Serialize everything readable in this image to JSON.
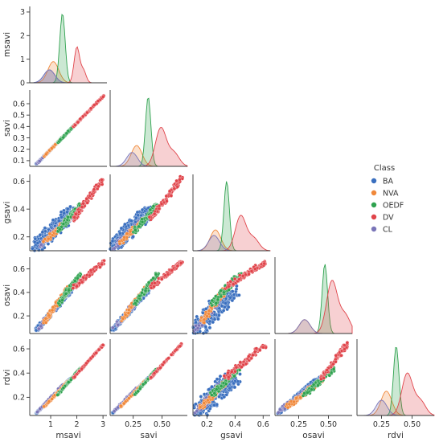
{
  "chart_data": {
    "type": "scatter",
    "subtype": "pairplot",
    "variables": [
      "msavi",
      "savi",
      "gsavi",
      "osavi",
      "rdvi"
    ],
    "diagonal": "kde",
    "legend": {
      "title": "Class",
      "placement": "right",
      "entries": [
        {
          "name": "BA",
          "color": "#3a6fbf"
        },
        {
          "name": "NVA",
          "color": "#f0883a"
        },
        {
          "name": "OEDF",
          "color": "#2fa24f"
        },
        {
          "name": "DV",
          "color": "#e0444a"
        },
        {
          "name": "CL",
          "color": "#7a75b8"
        }
      ]
    },
    "axes": {
      "msavi": {
        "range": [
          0.2,
          3.15
        ],
        "ticks": [
          1,
          2,
          3
        ],
        "tick_labels": [
          "1",
          "2",
          "3"
        ]
      },
      "savi": {
        "range": [
          0.05,
          0.72
        ],
        "ticks": [
          0.25,
          0.5
        ],
        "tick_labels": [
          "0.25",
          "0.50"
        ],
        "y_ticks": [
          0.1,
          0.2,
          0.3,
          0.4,
          0.5,
          0.6
        ],
        "y_tick_labels": [
          "0.1",
          "0.2",
          "0.3",
          "0.4",
          "0.5",
          "0.6"
        ]
      },
      "gsavi": {
        "range": [
          0.1,
          0.65
        ],
        "ticks": [
          0.2,
          0.4,
          0.6
        ],
        "tick_labels": [
          "0.2",
          "0.4",
          "0.6"
        ]
      },
      "osavi": {
        "range": [
          0.05,
          0.7
        ],
        "ticks": [
          0.25,
          0.5
        ],
        "tick_labels": [
          "0.25",
          "0.50"
        ],
        "y_ticks": [
          0.2,
          0.4,
          0.6
        ],
        "y_tick_labels": [
          "0.2",
          "0.4",
          "0.6"
        ]
      },
      "rdvi": {
        "range": [
          0.05,
          0.68
        ],
        "ticks": [
          0.25,
          0.5
        ],
        "tick_labels": [
          "0.25",
          "0.50"
        ],
        "y_ticks": [
          0.2,
          0.4,
          0.6
        ],
        "y_tick_labels": [
          "0.2",
          "0.4",
          "0.6"
        ]
      }
    },
    "diag_top_yaxis": {
      "ticks": [
        0,
        1,
        2,
        3
      ],
      "tick_labels": [
        "0",
        "1",
        "2",
        "3"
      ],
      "range": [
        0,
        3.1
      ]
    },
    "class_ranges": {
      "BA": {
        "savi": [
          0.07,
          0.38
        ],
        "gsavi": [
          0.13,
          0.38
        ],
        "osavi": [
          0.08,
          0.42
        ],
        "rdvi": [
          0.07,
          0.36
        ]
      },
      "NVA": {
        "savi": [
          0.14,
          0.36
        ],
        "gsavi": [
          0.16,
          0.34
        ],
        "osavi": [
          0.15,
          0.44
        ],
        "rdvi": [
          0.12,
          0.34
        ]
      },
      "OEDF": {
        "savi": [
          0.26,
          0.46
        ],
        "gsavi": [
          0.24,
          0.43
        ],
        "osavi": [
          0.3,
          0.55
        ],
        "rdvi": [
          0.22,
          0.44
        ]
      },
      "DV": {
        "savi": [
          0.4,
          0.67
        ],
        "gsavi": [
          0.33,
          0.62
        ],
        "osavi": [
          0.44,
          0.66
        ],
        "rdvi": [
          0.36,
          0.64
        ]
      },
      "CL": {
        "savi": [
          0.08,
          0.3
        ],
        "gsavi": [
          0.12,
          0.3
        ],
        "osavi": [
          0.08,
          0.36
        ],
        "rdvi": [
          0.08,
          0.3
        ]
      }
    },
    "diagonal_kde": {
      "msavi": [
        {
          "class": "BA",
          "peak_x": 0.95,
          "peak_y": 0.55
        },
        {
          "class": "NVA",
          "peak_x": 1.1,
          "peak_y": 0.9
        },
        {
          "class": "OEDF",
          "peak_x": 1.45,
          "peak_y": 2.95
        },
        {
          "class": "DV",
          "peak_x": 2.0,
          "peak_y": 1.5
        },
        {
          "class": "CL",
          "peak_x": 0.95,
          "peak_y": 0.55
        }
      ],
      "savi": [
        {
          "class": "NVA",
          "peak_x": 0.28,
          "peak_y": 0.3
        },
        {
          "class": "OEDF",
          "peak_x": 0.38,
          "peak_y": 1.0
        },
        {
          "class": "DV",
          "peak_x": 0.49,
          "peak_y": 0.55
        },
        {
          "class": "CL",
          "peak_x": 0.24,
          "peak_y": 0.2
        }
      ],
      "gsavi": [
        {
          "class": "NVA",
          "peak_x": 0.26,
          "peak_y": 0.3
        },
        {
          "class": "OEDF",
          "peak_x": 0.34,
          "peak_y": 1.0
        },
        {
          "class": "DV",
          "peak_x": 0.44,
          "peak_y": 0.5
        },
        {
          "class": "CL",
          "peak_x": 0.25,
          "peak_y": 0.22
        }
      ],
      "osavi": [
        {
          "class": "NVA",
          "peak_x": 0.3,
          "peak_y": 0.2
        },
        {
          "class": "OEDF",
          "peak_x": 0.47,
          "peak_y": 1.0
        },
        {
          "class": "DV",
          "peak_x": 0.53,
          "peak_y": 0.75
        },
        {
          "class": "CL",
          "peak_x": 0.3,
          "peak_y": 0.2
        }
      ],
      "rdvi": [
        {
          "class": "NVA",
          "peak_x": 0.29,
          "peak_y": 0.35
        },
        {
          "class": "OEDF",
          "peak_x": 0.37,
          "peak_y": 1.0
        },
        {
          "class": "DV",
          "peak_x": 0.46,
          "peak_y": 0.6
        },
        {
          "class": "CL",
          "peak_x": 0.25,
          "peak_y": 0.22
        }
      ]
    },
    "grid": false
  }
}
